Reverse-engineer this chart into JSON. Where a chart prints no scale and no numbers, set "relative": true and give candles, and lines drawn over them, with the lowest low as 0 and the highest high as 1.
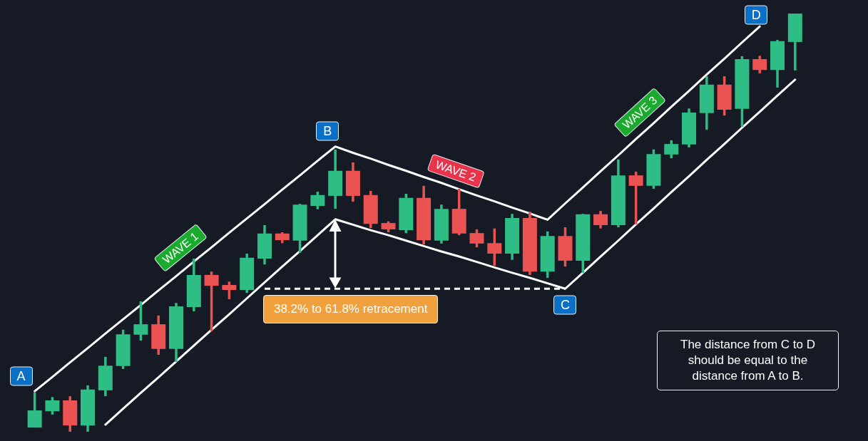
{
  "chart_data": {
    "type": "candlestick",
    "relative": true,
    "categories": [
      null,
      null,
      null,
      null,
      null,
      null,
      null,
      null,
      null,
      null,
      null,
      null,
      null,
      null,
      null,
      null,
      null,
      null,
      null,
      null,
      null,
      null,
      null,
      null,
      null,
      null,
      null,
      null,
      null,
      null,
      null,
      null,
      null,
      null,
      null,
      null,
      null,
      null,
      null,
      null,
      null,
      null,
      null,
      null
    ],
    "ohlc": [
      [
        0.01,
        0.094,
        0.01,
        0.051
      ],
      [
        0.049,
        0.083,
        0.041,
        0.075
      ],
      [
        0.075,
        0.085,
        0,
        0.015
      ],
      [
        0.015,
        0.111,
        0,
        0.101
      ],
      [
        0.099,
        0.179,
        0.085,
        0.158
      ],
      [
        0.157,
        0.244,
        0.15,
        0.233
      ],
      [
        0.232,
        0.312,
        0.218,
        0.257
      ],
      [
        0.257,
        0.278,
        0.184,
        0.198
      ],
      [
        0.198,
        0.308,
        0.167,
        0.3
      ],
      [
        0.298,
        0.414,
        0.288,
        0.375
      ],
      [
        0.375,
        0.383,
        0.24,
        0.349
      ],
      [
        0.351,
        0.359,
        0.317,
        0.339
      ],
      [
        0.339,
        0.426,
        0.332,
        0.416
      ],
      [
        0.414,
        0.494,
        0.4,
        0.474
      ],
      [
        0.474,
        0.477,
        0.451,
        0.458
      ],
      [
        0.457,
        0.545,
        0.428,
        0.543
      ],
      [
        0.54,
        0.574,
        0.532,
        0.566
      ],
      [
        0.564,
        0.675,
        0.533,
        0.624
      ],
      [
        0.624,
        0.644,
        0.55,
        0.564
      ],
      [
        0.566,
        0.576,
        0.487,
        0.497
      ],
      [
        0.499,
        0.503,
        0.477,
        0.484
      ],
      [
        0.482,
        0.569,
        0.475,
        0.559
      ],
      [
        0.559,
        0.588,
        0.448,
        0.458
      ],
      [
        0.457,
        0.543,
        0.45,
        0.533
      ],
      [
        0.533,
        0.581,
        0.47,
        0.474
      ],
      [
        0.475,
        0.484,
        0.441,
        0.45
      ],
      [
        0.451,
        0.486,
        0.397,
        0.426
      ],
      [
        0.426,
        0.521,
        0.411,
        0.511
      ],
      [
        0.511,
        0.526,
        0.375,
        0.383
      ],
      [
        0.383,
        0.479,
        0.368,
        0.468
      ],
      [
        0.468,
        0.489,
        0.395,
        0.409
      ],
      [
        0.409,
        0.521,
        0.38,
        0.52
      ],
      [
        0.52,
        0.528,
        0.486,
        0.494
      ],
      [
        0.494,
        0.651,
        0.489,
        0.613
      ],
      [
        0.613,
        0.622,
        0.496,
        0.588
      ],
      [
        0.588,
        0.675,
        0.581,
        0.664
      ],
      [
        0.663,
        0.697,
        0.654,
        0.688
      ],
      [
        0.687,
        0.773,
        0.68,
        0.763
      ],
      [
        0.762,
        0.85,
        0.722,
        0.83
      ],
      [
        0.83,
        0.85,
        0.756,
        0.77
      ],
      [
        0.772,
        0.898,
        0.729,
        0.891
      ],
      [
        0.891,
        0.899,
        0.857,
        0.865
      ],
      [
        0.865,
        0.937,
        0.823,
        0.934
      ],
      [
        0.932,
        1,
        0.864,
        1
      ]
    ],
    "colors": [
      "#2ebd85",
      "#2ebd85",
      "#eb5353",
      "#2ebd85",
      "#2ebd85",
      "#2ebd85",
      "#2ebd85",
      "#eb5353",
      "#2ebd85",
      "#2ebd85",
      "#eb5353",
      "#eb5353",
      "#2ebd85",
      "#2ebd85",
      "#eb5353",
      "#2ebd85",
      "#2ebd85",
      "#2ebd85",
      "#eb5353",
      "#eb5353",
      "#eb5353",
      "#2ebd85",
      "#eb5353",
      "#2ebd85",
      "#eb5353",
      "#eb5353",
      "#eb5353",
      "#2ebd85",
      "#eb5353",
      "#2ebd85",
      "#eb5353",
      "#2ebd85",
      "#eb5353",
      "#2ebd85",
      "#eb5353",
      "#2ebd85",
      "#2ebd85",
      "#2ebd85",
      "#2ebd85",
      "#eb5353",
      "#2ebd85",
      "#eb5353",
      "#2ebd85",
      "#2ebd85"
    ],
    "series": [
      {
        "type": "line",
        "color": "#ffffff",
        "values": [
          0.097,
          0.131,
          0.166,
          0.2,
          0.235,
          0.269,
          0.303,
          0.338,
          0.372,
          0.407,
          0.441,
          0.476,
          0.51,
          0.544,
          0.579,
          0.613,
          0.648,
          0.682,
          0.667,
          0.653,
          0.638,
          0.624,
          0.609,
          0.595,
          0.58,
          0.565,
          0.551,
          0.536,
          0.522,
          0.507,
          0.546,
          0.584,
          0.623,
          0.661,
          0.7,
          0.738,
          0.777,
          0.815,
          0.854,
          0.892,
          0.931,
          0.969,
          null,
          null
        ]
      },
      {
        "type": "line",
        "color": "#ffffff",
        "values": [
          null,
          null,
          null,
          null,
          0.017,
          0.055,
          0.093,
          0.13,
          0.168,
          0.206,
          0.244,
          0.281,
          0.319,
          0.357,
          0.395,
          0.432,
          0.47,
          0.508,
          0.495,
          0.482,
          0.47,
          0.457,
          0.444,
          0.431,
          0.419,
          0.406,
          0.393,
          0.38,
          0.368,
          0.355,
          0.342,
          0.38,
          0.419,
          0.457,
          0.496,
          0.534,
          0.573,
          0.611,
          0.65,
          0.688,
          0.727,
          0.765,
          0.804,
          0.842
        ]
      },
      {
        "type": "line",
        "color": "#ffffff",
        "line_style": "dashed",
        "values": [
          null,
          null,
          null,
          null,
          null,
          null,
          null,
          null,
          null,
          null,
          null,
          null,
          null,
          0.342,
          0.342,
          0.342,
          0.342,
          0.342,
          0.342,
          0.342,
          0.342,
          0.342,
          0.342,
          0.342,
          0.342,
          0.342,
          0.342,
          0.342,
          0.342,
          0.342,
          0.342,
          null,
          null,
          null,
          null,
          null,
          null,
          null,
          null,
          null,
          null,
          null,
          null,
          null
        ]
      }
    ],
    "annotations": [
      "A",
      "B",
      "C",
      "D",
      "WAVE 1",
      "WAVE 2",
      "WAVE 3",
      "38.2% to 61.8% retracement",
      "The distance from C to D should be equal to the distance from A to B."
    ]
  }
}
